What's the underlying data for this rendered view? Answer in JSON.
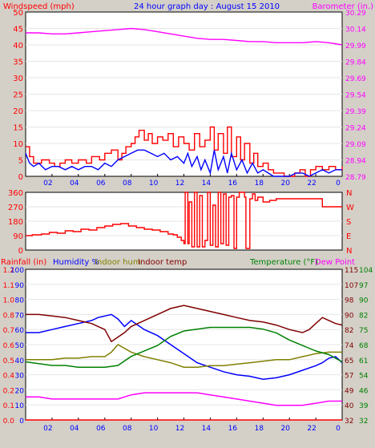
{
  "header": {
    "left_label": "Windspeed (mph)",
    "title": "24 hour graph day : August 15 2010",
    "right_label": "Barometer (in.)"
  },
  "bottom_header": {
    "rainfall": "Rainfall (in)",
    "humidity": "Humidity %",
    "indoor_hum": "Indoor hum",
    "indoor_temp": "Indoor temp",
    "temperature": "Temperature (°F)",
    "dew_point": "Dew Point"
  },
  "colors": {
    "wind_gust": "#ff0000",
    "wind_avg": "#0000ff",
    "barometer": "#ff00ff",
    "direction": "#ff0000",
    "rainfall": "#ff0000",
    "humidity": "#0000ff",
    "indoor_hum": "#808000",
    "indoor_temp": "#800000",
    "temperature": "#008000",
    "dew_point": "#ff00ff"
  },
  "chart_data": [
    {
      "type": "line",
      "name": "wind-barometer",
      "xlabel": "",
      "x_ticks": [
        "02",
        "04",
        "06",
        "08",
        "10",
        "12",
        "14",
        "16",
        "18",
        "20",
        "22",
        "0"
      ],
      "x_range": [
        0,
        24
      ],
      "left_axis": {
        "label": "Windspeed (mph)",
        "ticks": [
          "0",
          "5",
          "10",
          "15",
          "20",
          "25",
          "30",
          "35",
          "40",
          "45",
          "50"
        ],
        "range": [
          0,
          50
        ]
      },
      "right_axis": {
        "label": "Barometer (in.)",
        "ticks": [
          "28.79",
          "28.94",
          "29.09",
          "29.24",
          "29.39",
          "29.54",
          "29.69",
          "29.84",
          "29.99",
          "30.14",
          "30.29"
        ],
        "range": [
          28.79,
          30.29
        ]
      },
      "series": [
        {
          "key": "wind_gust",
          "axis": "left",
          "step": true,
          "x": [
            0,
            0.3,
            0.6,
            1.2,
            1.8,
            2.2,
            2.6,
            3.0,
            3.5,
            4.0,
            4.6,
            5.0,
            5.6,
            6.0,
            6.5,
            7.0,
            7.3,
            7.6,
            8.0,
            8.3,
            8.6,
            9.0,
            9.3,
            9.6,
            10.0,
            10.4,
            10.8,
            11.2,
            11.6,
            12.0,
            12.4,
            12.8,
            13.2,
            13.6,
            14.0,
            14.3,
            14.6,
            15.0,
            15.3,
            15.6,
            16.0,
            16.3,
            16.6,
            17.0,
            17.3,
            17.6,
            18.0,
            18.4,
            18.8,
            19.2,
            19.6,
            20.0,
            20.4,
            20.8,
            21.2,
            21.6,
            22.0,
            22.5,
            23.0,
            23.5,
            24.0
          ],
          "y": [
            9,
            6,
            4,
            5,
            4,
            3,
            4,
            5,
            4,
            5,
            4,
            6,
            5,
            7,
            8,
            5,
            7,
            9,
            10,
            12,
            14,
            11,
            13,
            10,
            12,
            11,
            13,
            9,
            12,
            10,
            8,
            13,
            9,
            11,
            15,
            8,
            13,
            7,
            15,
            6,
            12,
            5,
            10,
            4,
            7,
            3,
            4,
            2,
            1,
            1,
            0,
            0,
            1,
            2,
            0,
            2,
            3,
            2,
            3,
            2,
            3
          ]
        },
        {
          "key": "wind_avg",
          "axis": "left",
          "step": false,
          "x": [
            0,
            0.3,
            0.6,
            1.0,
            1.5,
            2.0,
            2.5,
            3.0,
            3.5,
            4.0,
            4.5,
            5.0,
            5.5,
            6.0,
            6.5,
            7.0,
            7.5,
            8.0,
            8.5,
            9.0,
            9.5,
            10.0,
            10.5,
            11.0,
            11.5,
            12.0,
            12.3,
            12.6,
            13.0,
            13.3,
            13.6,
            14.0,
            14.3,
            14.6,
            15.0,
            15.3,
            15.6,
            16.0,
            16.4,
            16.8,
            17.2,
            17.6,
            18.0,
            18.4,
            18.8,
            19.2,
            19.6,
            20.0,
            20.5,
            21.0,
            21.5,
            22.0,
            22.5,
            23.0,
            23.5,
            24.0
          ],
          "y": [
            7,
            4,
            3,
            4,
            2,
            3,
            3,
            2,
            3,
            2,
            3,
            3,
            2,
            4,
            3,
            5,
            6,
            7,
            8,
            8,
            7,
            6,
            7,
            5,
            6,
            4,
            7,
            3,
            6,
            2,
            5,
            1,
            8,
            2,
            6,
            1,
            7,
            2,
            5,
            1,
            4,
            1,
            2,
            1,
            0,
            0,
            0,
            0,
            1,
            1,
            0,
            1,
            2,
            1,
            2,
            2
          ]
        },
        {
          "key": "barometer",
          "axis": "right",
          "step": false,
          "x": [
            0,
            1,
            2,
            3,
            4,
            5,
            6,
            7,
            8,
            9,
            10,
            11,
            12,
            13,
            14,
            15,
            16,
            17,
            18,
            19,
            20,
            21,
            22,
            23,
            24
          ],
          "y": [
            30.1,
            30.1,
            30.09,
            30.09,
            30.1,
            30.11,
            30.12,
            30.13,
            30.14,
            30.13,
            30.11,
            30.09,
            30.07,
            30.05,
            30.04,
            30.04,
            30.03,
            30.02,
            30.02,
            30.01,
            30.01,
            30.01,
            30.02,
            30.01,
            29.99
          ]
        }
      ]
    },
    {
      "type": "line",
      "name": "wind-direction",
      "x_range": [
        0,
        24
      ],
      "left_axis": {
        "ticks": [
          "0",
          "90",
          "180",
          "270",
          "360"
        ],
        "range": [
          0,
          360
        ]
      },
      "right_axis": {
        "ticks": [
          "N",
          "E",
          "S",
          "W",
          "N"
        ]
      },
      "series": [
        {
          "key": "direction",
          "axis": "left",
          "step": true,
          "x": [
            0,
            0.5,
            1.2,
            1.8,
            2.4,
            3.0,
            3.6,
            4.2,
            4.8,
            5.4,
            6.0,
            6.6,
            7.2,
            7.8,
            8.4,
            9.0,
            9.6,
            10.2,
            10.8,
            11.2,
            11.5,
            11.8,
            12.0,
            12.1,
            12.3,
            12.4,
            12.6,
            12.8,
            13.0,
            13.2,
            13.4,
            13.6,
            13.8,
            14.0,
            14.2,
            14.4,
            14.6,
            14.8,
            15.0,
            15.2,
            15.4,
            15.6,
            15.8,
            16.0,
            16.2,
            16.4,
            16.6,
            16.7,
            17.0,
            17.2,
            17.4,
            17.6,
            18.0,
            18.5,
            19.0,
            19.5,
            20.0,
            21.0,
            22.0,
            22.5,
            23.0,
            24.0
          ],
          "y": [
            90,
            95,
            100,
            110,
            105,
            120,
            115,
            130,
            125,
            140,
            150,
            160,
            165,
            150,
            140,
            130,
            125,
            115,
            100,
            95,
            80,
            60,
            40,
            360,
            40,
            300,
            20,
            360,
            20,
            340,
            20,
            60,
            360,
            30,
            280,
            20,
            360,
            40,
            350,
            30,
            330,
            340,
            10,
            330,
            360,
            360,
            330,
            10,
            320,
            350,
            310,
            330,
            300,
            310,
            320,
            320,
            320,
            320,
            320,
            270,
            270,
            270
          ]
        }
      ]
    },
    {
      "type": "line",
      "name": "humidity-temperature",
      "x_range": [
        0,
        24
      ],
      "axes": [
        {
          "label": "Rainfall (in)",
          "ticks": [
            "0.0",
            "0.1",
            "0.2",
            "0.4",
            "0.5",
            "0.6",
            "0.7",
            "0.8",
            "1.0",
            "1.1",
            "1.2"
          ],
          "range": [
            0,
            1.2
          ]
        },
        {
          "label": "Humidity %",
          "ticks": [
            "0",
            "10",
            "20",
            "30",
            "40",
            "50",
            "60",
            "70",
            "80",
            "90",
            "100"
          ],
          "range": [
            0,
            100
          ]
        },
        {
          "label": "Temperature (°F)",
          "ticks": [
            "32",
            "40",
            "49",
            "57",
            "65",
            "74",
            "82",
            "90",
            "98",
            "107",
            "115"
          ],
          "range": [
            32,
            115
          ]
        },
        {
          "label": "Dew Point",
          "ticks": [
            "32",
            "39",
            "46",
            "54",
            "61",
            "68",
            "75",
            "82",
            "90",
            "97",
            "104"
          ],
          "range": [
            32,
            104
          ]
        }
      ],
      "series": [
        {
          "key": "rainfall",
          "axis": 0,
          "x": [
            0,
            24
          ],
          "y": [
            0,
            0
          ]
        },
        {
          "key": "humidity",
          "axis": 1,
          "x": [
            0,
            1,
            2,
            3,
            4,
            5,
            5.5,
            6,
            6.5,
            7,
            7.5,
            8,
            8.5,
            9,
            10,
            11,
            12,
            13,
            14,
            15,
            16,
            17,
            18,
            19,
            20,
            21,
            22,
            22.5,
            23,
            23.5,
            24
          ],
          "y": [
            58,
            58,
            60,
            62,
            64,
            66,
            68,
            69,
            70,
            67,
            62,
            66,
            63,
            60,
            56,
            50,
            44,
            38,
            35,
            32,
            30,
            29,
            27,
            28,
            30,
            33,
            36,
            38,
            41,
            42,
            38
          ]
        },
        {
          "key": "indoor_hum",
          "axis": 1,
          "x": [
            0,
            1,
            2,
            3,
            4,
            5,
            6,
            6.5,
            7,
            8,
            9,
            10,
            11,
            12,
            13,
            14,
            15,
            16,
            17,
            18,
            19,
            20,
            21,
            22,
            23,
            24
          ],
          "y": [
            40,
            40,
            40,
            41,
            41,
            42,
            42,
            45,
            50,
            45,
            42,
            40,
            38,
            35,
            35,
            36,
            36,
            37,
            38,
            39,
            40,
            40,
            42,
            44,
            45,
            45
          ]
        },
        {
          "key": "indoor_temp",
          "axis": 1,
          "x": [
            0,
            1,
            2,
            3,
            4,
            5,
            6,
            6.5,
            7,
            7.5,
            8,
            9,
            10,
            11,
            12,
            13,
            14,
            15,
            16,
            17,
            18,
            19,
            20,
            21,
            21.5,
            22,
            22.5,
            23,
            23.5,
            24
          ],
          "y": [
            70,
            70,
            69,
            68,
            66,
            64,
            60,
            52,
            55,
            58,
            62,
            66,
            70,
            74,
            76,
            74,
            72,
            70,
            68,
            66,
            65,
            63,
            60,
            58,
            60,
            64,
            68,
            66,
            64,
            63
          ]
        },
        {
          "key": "temperature",
          "axis": 2,
          "x": [
            0,
            1,
            2,
            3,
            4,
            5,
            6,
            7,
            8,
            9,
            10,
            11,
            12,
            13,
            14,
            15,
            16,
            17,
            18,
            19,
            20,
            21,
            22,
            23,
            24
          ],
          "y": [
            64,
            63,
            62,
            62,
            61,
            61,
            61,
            62,
            67,
            70,
            73,
            78,
            81,
            82,
            83,
            83,
            83,
            83,
            82,
            80,
            76,
            73,
            70,
            68,
            64
          ]
        },
        {
          "key": "dew_point",
          "axis": 3,
          "x": [
            0,
            1,
            2,
            3,
            4,
            5,
            6,
            7,
            8,
            9,
            10,
            11,
            12,
            13,
            14,
            15,
            16,
            17,
            18,
            19,
            20,
            21,
            22,
            23,
            24
          ],
          "y": [
            43,
            43,
            42,
            42,
            42,
            42,
            42,
            42,
            44,
            45,
            45,
            45,
            45,
            45,
            44,
            43,
            42,
            41,
            40,
            39,
            39,
            39,
            40,
            41,
            41
          ]
        }
      ]
    }
  ]
}
